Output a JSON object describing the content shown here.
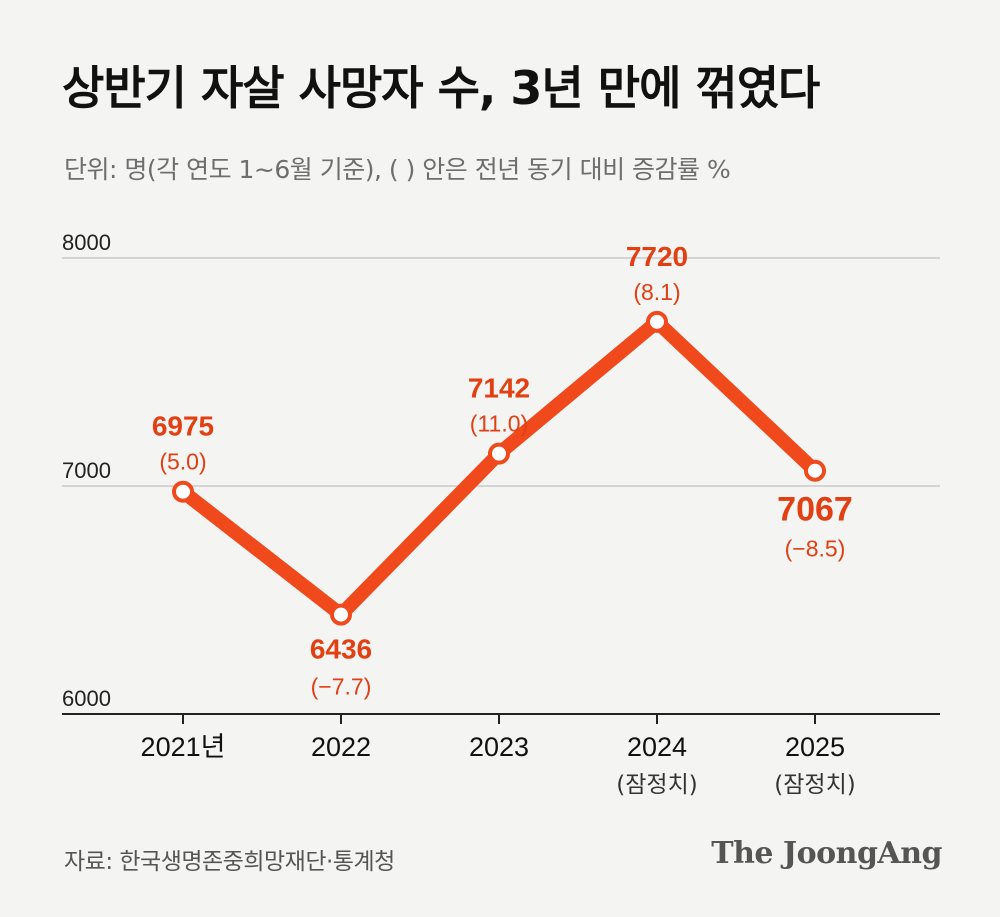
{
  "title": "상반기 자살 사망자 수, 3년 만에 꺾였다",
  "subtitle": "단위: 명(각 연도 1~6월 기준), ( ) 안은 전년 동기 대비 증감률 %",
  "source": "자료: 한국생명존중희망재단·통계청",
  "logo_text": "The JoongAng",
  "colors": {
    "line": "#f04a1c",
    "value_label": "#e23f12",
    "grid": "#c9c9c9",
    "axis": "#222222"
  },
  "chart_data": {
    "type": "line",
    "categories": [
      "2021년",
      "2022",
      "2023",
      "2024",
      "2025"
    ],
    "category_notes": [
      "",
      "",
      "",
      "(잠정치)",
      "(잠정치)"
    ],
    "values": [
      6975,
      6436,
      7142,
      7720,
      7067
    ],
    "value_labels": [
      "6975",
      "6436",
      "7142",
      "7720",
      "7067"
    ],
    "change_labels": [
      "(5.0)",
      "(−7.7)",
      "(11.0)",
      "(8.1)",
      "(−8.5)"
    ],
    "label_positions": [
      "above",
      "below",
      "above",
      "above",
      "below"
    ],
    "ylim": [
      6000,
      8000
    ],
    "yticks": [
      "6000",
      "7000",
      "8000"
    ],
    "grid": true
  }
}
